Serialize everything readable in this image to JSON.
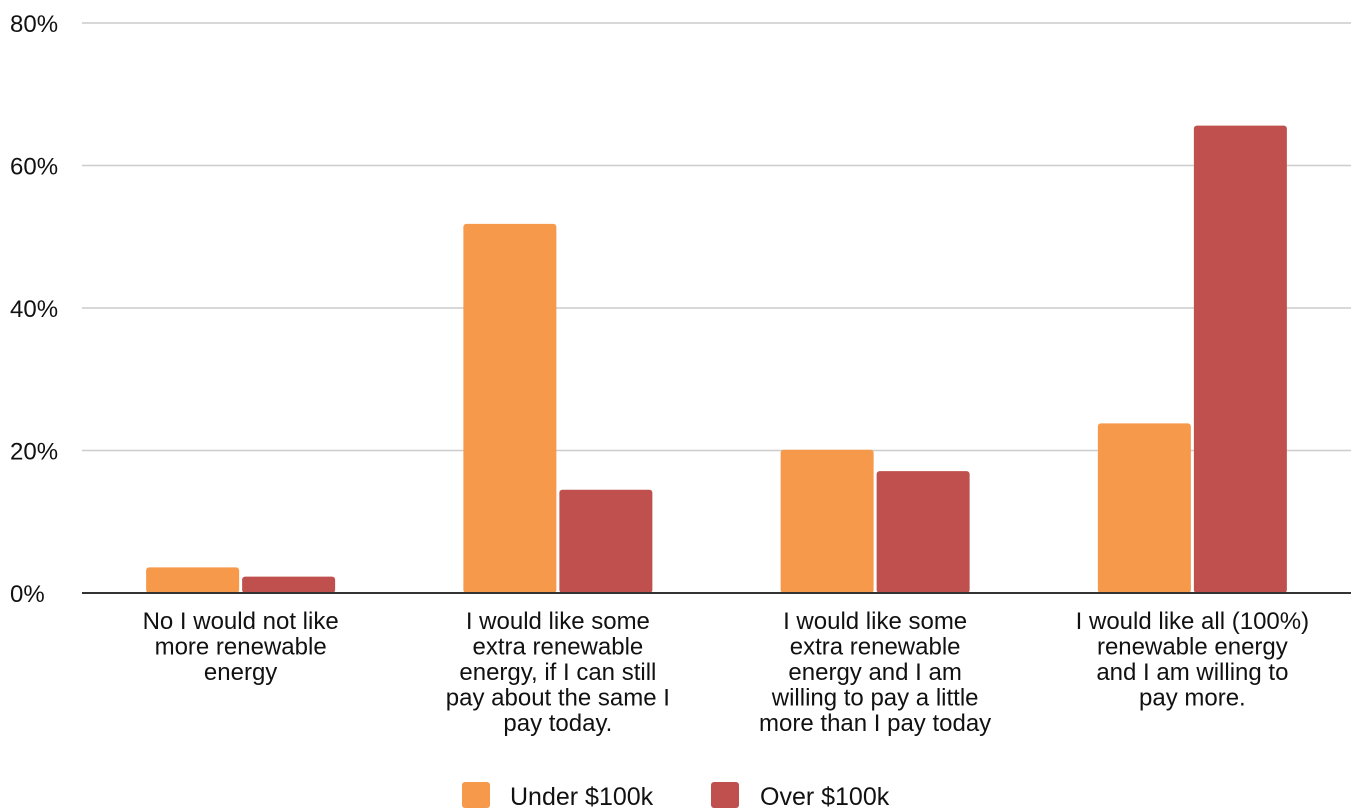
{
  "chart_data": {
    "type": "bar",
    "categories": [
      [
        "No I would not like",
        "more renewable",
        "energy"
      ],
      [
        "I would like some",
        "extra renewable",
        "energy, if I can still",
        "pay about the same I",
        "pay today."
      ],
      [
        "I would like some",
        "extra renewable",
        "energy and I am",
        "willing to pay a little",
        "more than I pay today"
      ],
      [
        "I would like all (100%)",
        "renewable energy",
        "and I am willing to",
        "pay more."
      ]
    ],
    "series": [
      {
        "name": "Under $100k",
        "color": "#f6994a",
        "values": [
          3.6,
          51.8,
          20.1,
          23.8
        ]
      },
      {
        "name": "Over $100k",
        "color": "#c0504d",
        "values": [
          2.3,
          14.5,
          17.1,
          65.6
        ]
      }
    ],
    "yticks": [
      "0%",
      "20%",
      "40%",
      "60%",
      "80%"
    ],
    "ytick_values": [
      0,
      20,
      40,
      60,
      80
    ],
    "ylim": [
      0,
      80
    ],
    "grid": true,
    "legend": "bottom-center"
  }
}
